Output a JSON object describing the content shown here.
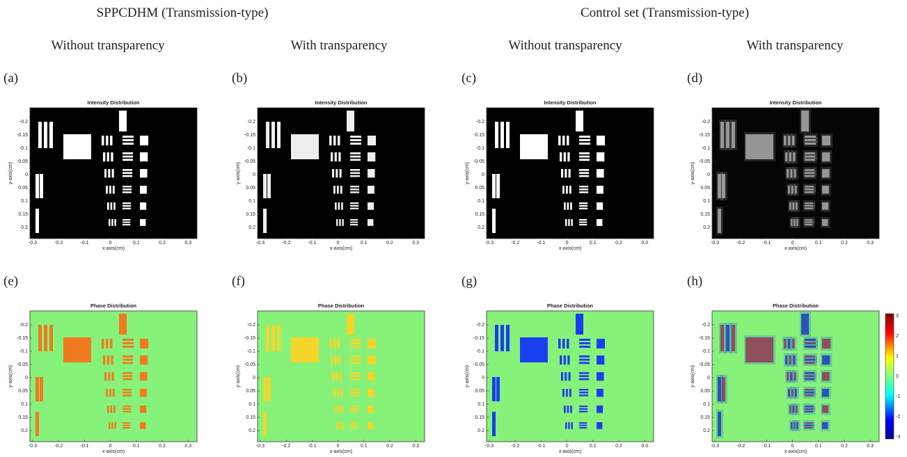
{
  "headers": [
    "SPPCDHM (Transmission-type)",
    "Control set (Transmission-type)"
  ],
  "subheaders": [
    "Without transparency",
    "With transparency",
    "Without transparency",
    "With transparency"
  ],
  "panels": [
    {
      "label": "(a)",
      "title": "Intensity Distribution"
    },
    {
      "label": "(b)",
      "title": "Intensity Distribution"
    },
    {
      "label": "(c)",
      "title": "Intensity Distribution"
    },
    {
      "label": "(d)",
      "title": "Intensity Distribution"
    },
    {
      "label": "(e)",
      "title": "Phase Distribution"
    },
    {
      "label": "(f)",
      "title": "Phase Distribution"
    },
    {
      "label": "(g)",
      "title": "Phase Distribution"
    },
    {
      "label": "(h)",
      "title": "Phase Distribution"
    }
  ],
  "axes": {
    "x_label": "x-axis(cm)",
    "y_label": "y-axis(cm)",
    "x_ticks": [
      "-0.3",
      "-0.2",
      "-0.1",
      "0",
      "0.1",
      "0.2",
      "0.3"
    ],
    "y_ticks": [
      "-0.2",
      "-0.15",
      "-0.1",
      "-0.05",
      "0",
      "0.05",
      "0.1",
      "0.15",
      "0.2"
    ]
  },
  "colorbar": {
    "ticks": [
      "3",
      "2",
      "1",
      "0",
      "-1",
      "-2",
      "-3"
    ]
  }
}
